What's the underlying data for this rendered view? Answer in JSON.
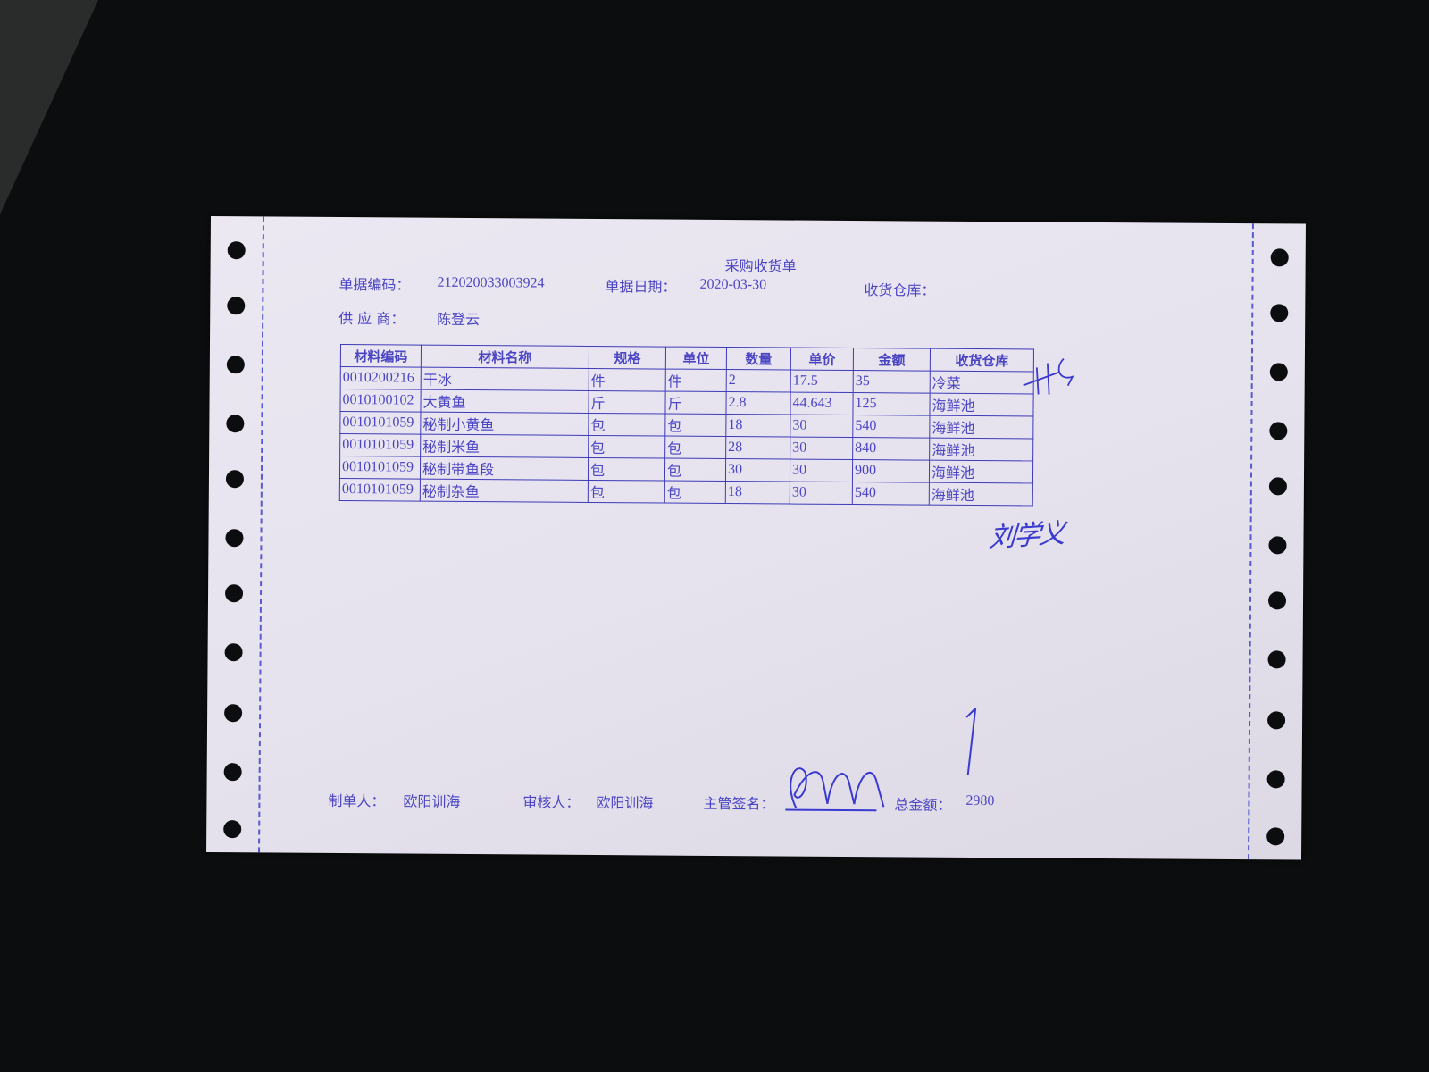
{
  "document": {
    "title": "采购收货单",
    "fields": {
      "doc_no_label": "单据编码：",
      "doc_no": "212020033003924",
      "date_label": "单据日期：",
      "date": "2020-03-30",
      "warehouse_label": "收货仓库：",
      "supplier_label": "供 应 商：",
      "supplier": "陈登云"
    },
    "table": {
      "headers": [
        "材料编码",
        "材料名称",
        "规格",
        "单位",
        "数量",
        "单价",
        "金额",
        "收货仓库"
      ],
      "rows": [
        [
          "0010200216",
          "干冰",
          "件",
          "件",
          "2",
          "17.5",
          "35",
          "冷菜"
        ],
        [
          "0010100102",
          "大黄鱼",
          "斤",
          "斤",
          "2.8",
          "44.643",
          "125",
          "海鲜池"
        ],
        [
          "0010101059",
          "秘制小黄鱼",
          "包",
          "包",
          "18",
          "30",
          "540",
          "海鲜池"
        ],
        [
          "0010101059",
          "秘制米鱼",
          "包",
          "包",
          "28",
          "30",
          "840",
          "海鲜池"
        ],
        [
          "0010101059",
          "秘制带鱼段",
          "包",
          "包",
          "30",
          "30",
          "900",
          "海鲜池"
        ],
        [
          "0010101059",
          "秘制杂鱼",
          "包",
          "包",
          "18",
          "30",
          "540",
          "海鲜池"
        ]
      ]
    },
    "footer": {
      "maker_label": "制单人：",
      "maker": "欧阳训海",
      "reviewer_label": "审核人：",
      "reviewer": "欧阳训海",
      "supervisor_label": "主管签名：",
      "total_label": "总金额：",
      "total": "2980"
    },
    "handwriting": {
      "name": "刘学义"
    },
    "colors": {
      "ink": "#4b45c4",
      "paper": "#e8e4ee",
      "background": "#0c0d0e"
    }
  }
}
